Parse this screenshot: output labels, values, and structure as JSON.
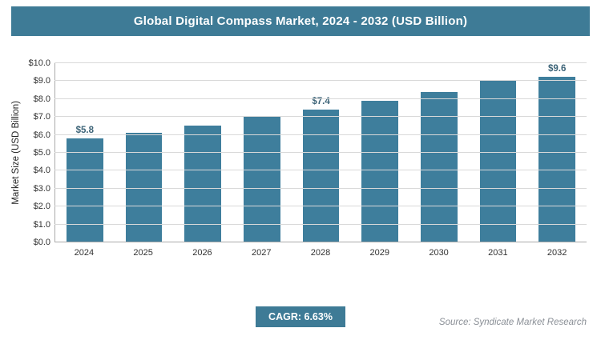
{
  "header": {
    "title": "Global Digital Compass Market, 2024 - 2032 (USD Billion)"
  },
  "chart_data": {
    "type": "bar",
    "title": "Global Digital Compass Market, 2024 - 2032 (USD Billion)",
    "categories": [
      "2024",
      "2025",
      "2026",
      "2027",
      "2028",
      "2029",
      "2030",
      "2031",
      "2032"
    ],
    "values": [
      5.8,
      6.1,
      6.5,
      7.0,
      7.4,
      7.9,
      8.4,
      9.0,
      9.6
    ],
    "value_labels": [
      "$5.8",
      "",
      "",
      "",
      "$7.4",
      "",
      "",
      "",
      "$9.6"
    ],
    "xlabel": "",
    "ylabel": "Market Size (USD Billion)",
    "ylim": [
      0,
      10
    ],
    "ytick_step": 1,
    "ytick_prefix": "$",
    "grid": true,
    "legend": "none",
    "bar_color": "#3e7e9c"
  },
  "footer": {
    "cagr_label": "CAGR: 6.63%",
    "source": "Source: Syndicate Market Research"
  },
  "colors": {
    "accent": "#3e7b96",
    "bar": "#3e7e9c",
    "grid": "#d9d9d9",
    "value_label": "#3d6478",
    "source_text": "#8a8f96"
  }
}
